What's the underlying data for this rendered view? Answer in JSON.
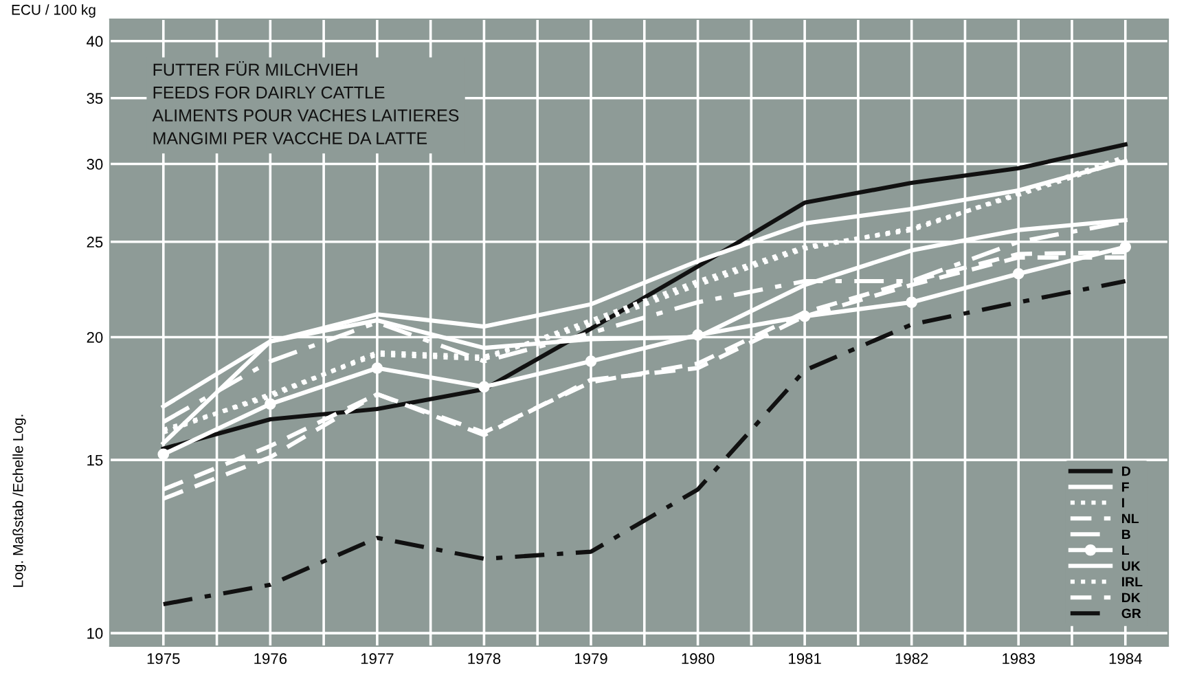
{
  "chart_data": {
    "type": "line",
    "title": "FUTTER FÜR MILCHVIEH\nFEEDS FOR DAIRLY CATTLE\nALIMENTS POUR VACHES LAITIERES\nMANGIMI PER VACCHE DA LATTE",
    "ylabel": "ECU / 100 kg",
    "annotations": [
      "Log. Maßstab /Echelle Log."
    ],
    "x": [
      1975,
      1976,
      1977,
      1978,
      1979,
      1980,
      1981,
      1982,
      1983,
      1984
    ],
    "series": [
      {
        "name": "D",
        "color": "#111111",
        "line_style": "solid",
        "values": [
          15.4,
          16.5,
          16.9,
          17.7,
          20.4,
          23.6,
          27.4,
          28.7,
          29.7,
          31.4
        ]
      },
      {
        "name": "F",
        "color": "#ffffff",
        "line_style": "solid",
        "values": [
          17.0,
          19.8,
          21.1,
          20.5,
          21.6,
          23.9,
          26.1,
          27.0,
          28.2,
          30.2
        ]
      },
      {
        "name": "I",
        "color": "#ffffff",
        "line_style": "dotted",
        "values": [
          16.0,
          17.5,
          19.2,
          19.0,
          20.8,
          22.8,
          24.7,
          25.7,
          28.0,
          30.5
        ]
      },
      {
        "name": "NL",
        "color": "#ffffff",
        "line_style": "dashed",
        "values": [
          14.0,
          15.5,
          17.5,
          16.0,
          18.0,
          18.8,
          21.2,
          22.8,
          24.3,
          24.4
        ]
      },
      {
        "name": "B",
        "color": "#ffffff",
        "line_style": "dashdot",
        "values": [
          16.4,
          18.9,
          20.7,
          18.9,
          20.2,
          21.7,
          22.8,
          22.8,
          25.0,
          26.2
        ]
      },
      {
        "name": "L",
        "color": "#ffffff",
        "line_style": "solid",
        "marker": "circle",
        "values": [
          15.2,
          17.1,
          18.6,
          17.8,
          18.9,
          20.1,
          21.0,
          21.7,
          23.2,
          24.7
        ]
      },
      {
        "name": "UK",
        "color": "#ffffff",
        "line_style": "solid",
        "values": [
          15.6,
          19.8,
          20.8,
          19.5,
          19.9,
          20.0,
          22.6,
          24.5,
          25.7,
          26.3
        ]
      },
      {
        "name": "IRL",
        "color": "#ffffff",
        "line_style": "dotted",
        "values": [
          16.1,
          17.4,
          19.3,
          19.1,
          20.6,
          22.6,
          24.6,
          25.8,
          27.9,
          30.3
        ]
      },
      {
        "name": "DK",
        "color": "#ffffff",
        "line_style": "dashed",
        "values": [
          13.7,
          15.1,
          17.5,
          15.9,
          18.1,
          18.6,
          21.0,
          22.6,
          24.1,
          24.1
        ]
      },
      {
        "name": "GR",
        "color": "#111111",
        "line_style": "dashdot",
        "values": [
          10.7,
          11.2,
          12.5,
          11.9,
          12.1,
          14.0,
          18.5,
          20.6,
          21.7,
          22.8
        ]
      }
    ],
    "log": "y",
    "xlim": [
      1974.5,
      1984.4
    ],
    "xticks": [
      1975,
      {
        "value": 1975.5,
        "label": null
      },
      1976,
      {
        "value": 1976.5,
        "label": null
      },
      1977,
      {
        "value": 1977.5,
        "label": null
      },
      1978,
      {
        "value": 1978.5,
        "label": null
      },
      1979,
      {
        "value": 1979.5,
        "label": null
      },
      1980,
      {
        "value": 1980.5,
        "label": null
      },
      1981,
      {
        "value": 1981.5,
        "label": null
      },
      1982,
      {
        "value": 1982.5,
        "label": null
      },
      1983,
      {
        "value": 1983.5,
        "label": null
      },
      1984
    ],
    "ylim": [
      9.7,
      42.1
    ],
    "yticks": [
      10,
      15,
      20,
      25,
      30,
      35,
      40
    ],
    "grid": true,
    "legend": "lower right"
  }
}
